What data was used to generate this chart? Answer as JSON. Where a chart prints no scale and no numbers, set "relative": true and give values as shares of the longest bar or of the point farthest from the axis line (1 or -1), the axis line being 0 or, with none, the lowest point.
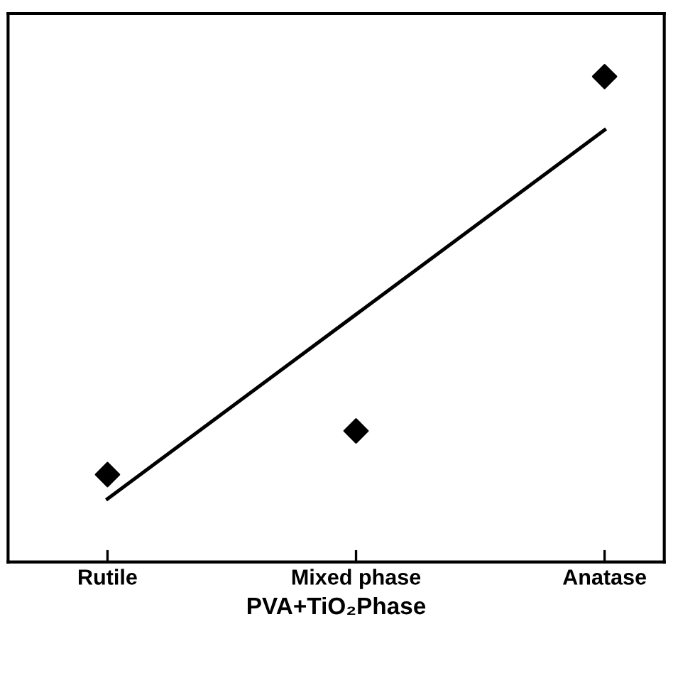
{
  "chart_data": {
    "type": "scatter",
    "relative": true,
    "xlabel": "PVA+TiO₂Phase",
    "categories": [
      "Rutile",
      "Mixed phase",
      "Anatase"
    ],
    "marker": "diamond",
    "grid": false,
    "series": [
      {
        "color": "#000000",
        "values": [
          0.18,
          0.27,
          1.0
        ]
      },
      {
        "type": "line",
        "color": "#000000",
        "marker": "none",
        "values": [
          0.13,
          0.51,
          0.89
        ]
      }
    ]
  }
}
